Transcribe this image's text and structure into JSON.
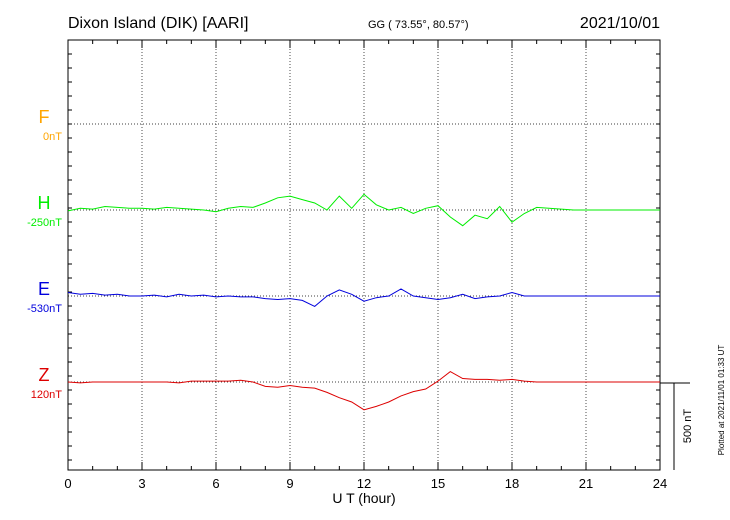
{
  "chart_data": {
    "type": "line",
    "title": "Dixon Island (DIK)  [AARI]",
    "coordinates": "GG ( 73.55°,  80.57°)",
    "date": "2021/10/01",
    "xlabel": "U T (hour)",
    "xlim": [
      0,
      24
    ],
    "xticks": [
      "0",
      "3",
      "6",
      "9",
      "12",
      "15",
      "18",
      "21",
      "24"
    ],
    "grid": true,
    "scale_bar_label": "500 nT",
    "plotted_note": "Plotted at 2021/11/01 01:33 UT",
    "series": [
      {
        "name": "F",
        "baseline_label": "0nT",
        "color": "#ffa500",
        "unit": "nT",
        "x": [],
        "values": []
      },
      {
        "name": "H",
        "baseline_label": "-250nT",
        "color": "#00ee00",
        "unit": "nT",
        "x": [
          0,
          0.5,
          1,
          1.5,
          2,
          2.5,
          3,
          3.5,
          4,
          4.5,
          5,
          5.5,
          6,
          6.5,
          7,
          7.5,
          8,
          8.5,
          9,
          9.5,
          10,
          10.5,
          11,
          11.5,
          12,
          12.5,
          13,
          13.5,
          14,
          14.5,
          15,
          15.5,
          16,
          16.5,
          17,
          17.5,
          18,
          18.5,
          19,
          19.5,
          20,
          20.5,
          21,
          21.5,
          22,
          22.5,
          23,
          23.5,
          24
        ],
        "values": [
          -5,
          10,
          5,
          20,
          15,
          10,
          10,
          5,
          15,
          10,
          5,
          0,
          -10,
          10,
          20,
          15,
          40,
          70,
          80,
          60,
          40,
          0,
          80,
          10,
          90,
          30,
          0,
          15,
          -20,
          10,
          25,
          -40,
          -90,
          -30,
          -50,
          20,
          -70,
          -20,
          15,
          10,
          5,
          0,
          0,
          0,
          0,
          0,
          0,
          0,
          0
        ]
      },
      {
        "name": "E",
        "baseline_label": "-530nT",
        "color": "#0000dd",
        "unit": "nT",
        "x": [
          0,
          0.5,
          1,
          1.5,
          2,
          2.5,
          3,
          3.5,
          4,
          4.5,
          5,
          5.5,
          6,
          6.5,
          7,
          7.5,
          8,
          8.5,
          9,
          9.5,
          10,
          10.5,
          11,
          11.5,
          12,
          12.5,
          13,
          13.5,
          14,
          14.5,
          15,
          15.5,
          16,
          16.5,
          17,
          17.5,
          18,
          18.5,
          19,
          19.5,
          20,
          20.5,
          21,
          21.5,
          22,
          22.5,
          23,
          23.5,
          24
        ],
        "values": [
          20,
          10,
          15,
          5,
          10,
          0,
          0,
          5,
          -5,
          10,
          0,
          5,
          -5,
          0,
          -5,
          -5,
          -15,
          -20,
          -15,
          -25,
          -60,
          0,
          35,
          10,
          -30,
          -10,
          0,
          40,
          0,
          -10,
          -20,
          -10,
          10,
          -15,
          -5,
          0,
          20,
          0,
          0,
          0,
          0,
          0,
          0,
          0,
          0,
          0,
          0,
          0,
          0
        ]
      },
      {
        "name": "Z",
        "baseline_label": "120nT",
        "color": "#dd0000",
        "unit": "nT",
        "x": [
          0,
          0.5,
          1,
          1.5,
          2,
          2.5,
          3,
          3.5,
          4,
          4.5,
          5,
          5.5,
          6,
          6.5,
          7,
          7.5,
          8,
          8.5,
          9,
          9.5,
          10,
          10.5,
          11,
          11.5,
          12,
          12.5,
          13,
          13.5,
          14,
          14.5,
          15,
          15.5,
          16,
          16.5,
          17,
          17.5,
          18,
          18.5,
          19,
          19.5,
          20,
          20.5,
          21,
          21.5,
          22,
          22.5,
          23,
          23.5,
          24
        ],
        "values": [
          0,
          -5,
          0,
          0,
          0,
          0,
          0,
          0,
          0,
          -5,
          5,
          5,
          5,
          5,
          10,
          0,
          -25,
          -30,
          -20,
          -30,
          -35,
          -60,
          -90,
          -115,
          -160,
          -140,
          -115,
          -80,
          -55,
          -40,
          5,
          60,
          20,
          15,
          15,
          10,
          15,
          5,
          0,
          0,
          0,
          0,
          0,
          0,
          0,
          0,
          0,
          0,
          0
        ]
      }
    ]
  }
}
